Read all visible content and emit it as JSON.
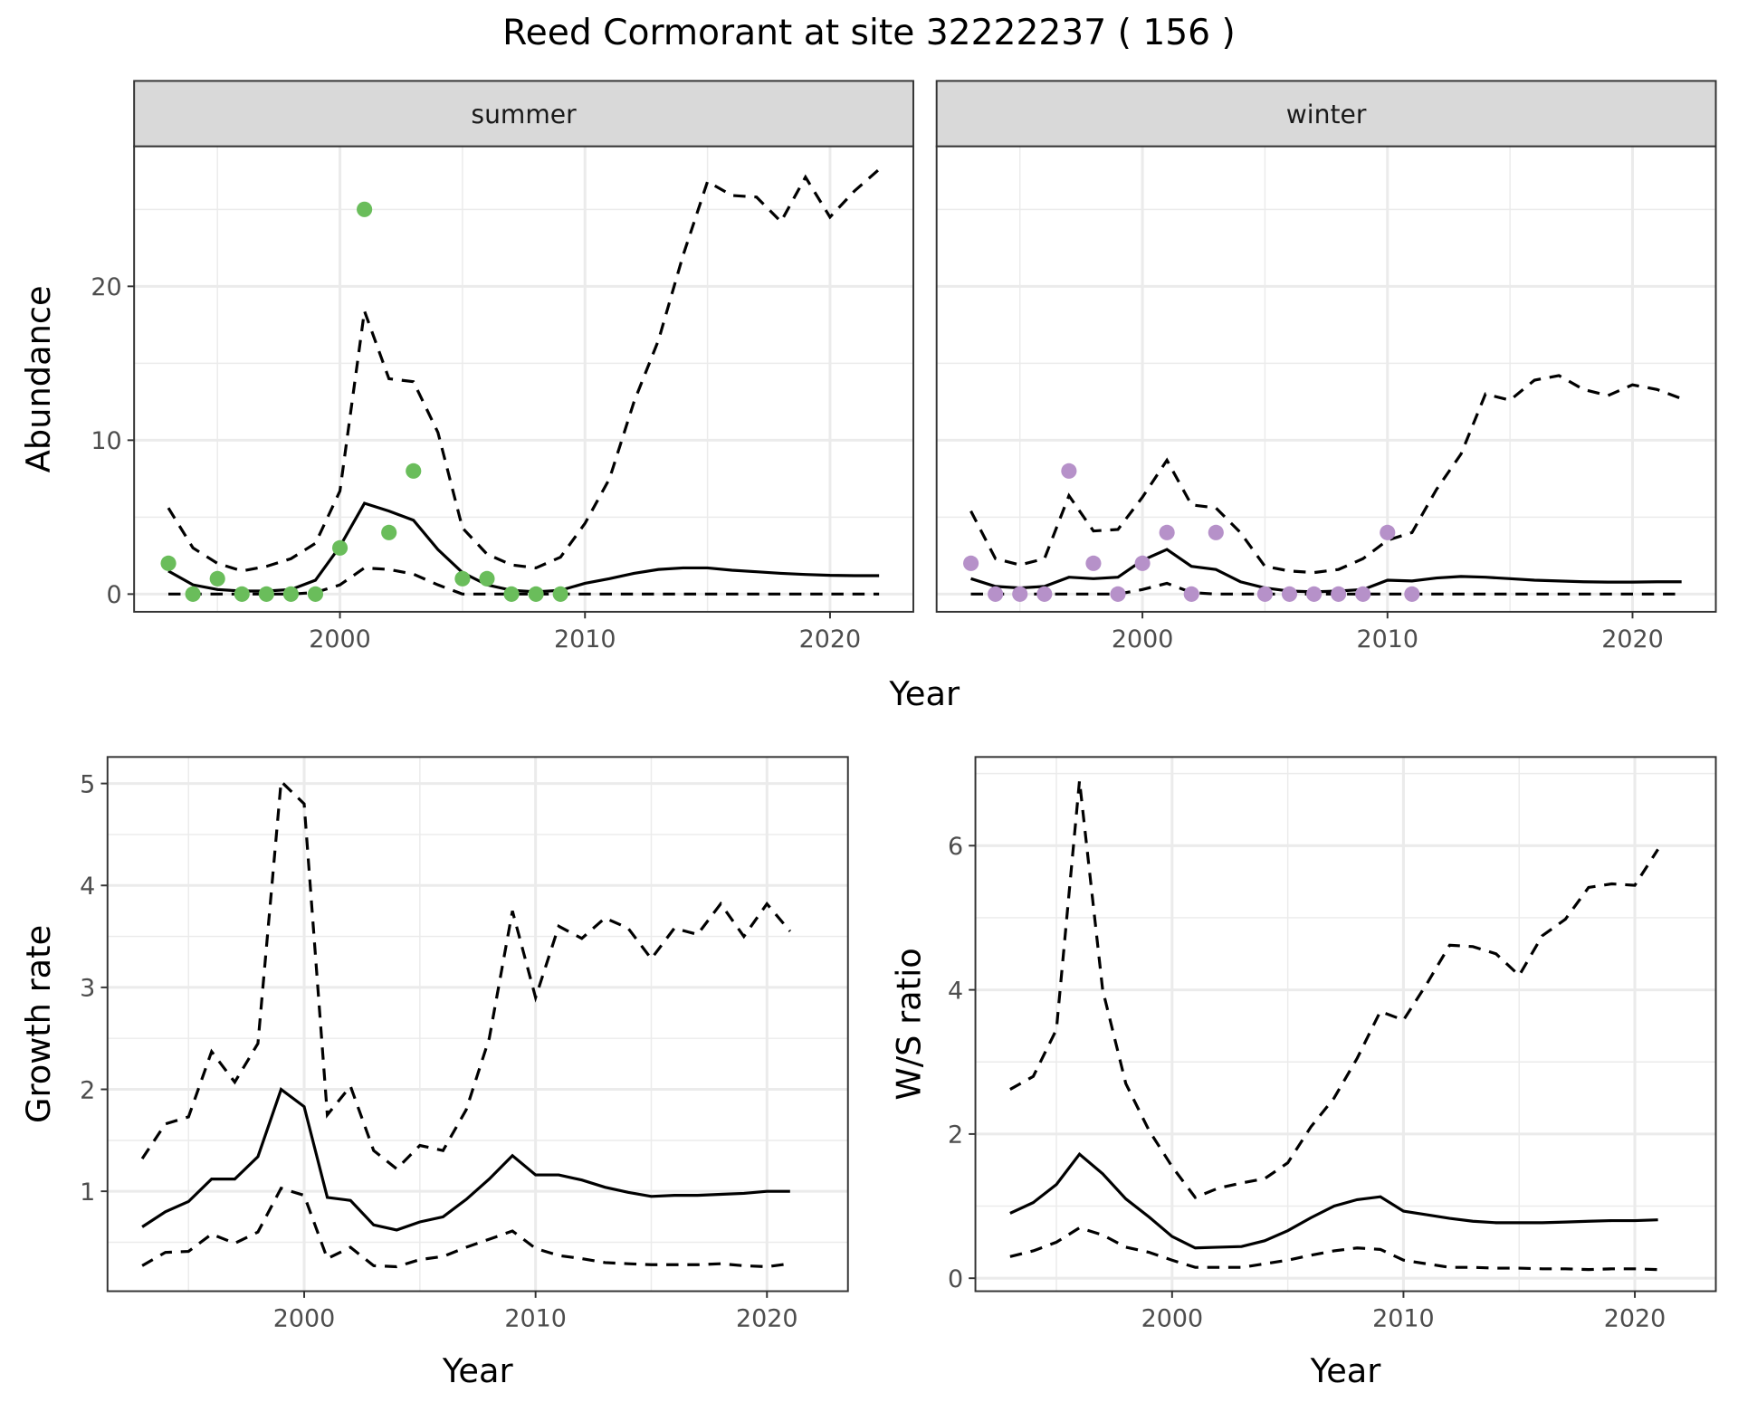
{
  "title": "Reed Cormorant at site 32222237 ( 156 )",
  "colors": {
    "summer": "#6abd5b",
    "winter": "#b691c9",
    "line": "#000000",
    "strip": "#d9d9d9",
    "grid": "#ebebeb"
  },
  "chart_data": [
    {
      "type": "line",
      "facet": "summer",
      "xlabel": "Year",
      "ylabel": "Abundance",
      "xlim": [
        1991.6,
        2023.4
      ],
      "ylim": [
        -1.15,
        29.1
      ],
      "xticks": [
        2000,
        2010,
        2020
      ],
      "yticks": [
        0,
        10,
        20
      ],
      "grid": true,
      "x": [
        1993,
        1994,
        1995,
        1996,
        1997,
        1998,
        1999,
        2000,
        2001,
        2002,
        2003,
        2004,
        2005,
        2006,
        2007,
        2008,
        2009,
        2010,
        2011,
        2012,
        2013,
        2014,
        2015,
        2016,
        2017,
        2018,
        2019,
        2020,
        2021,
        2022
      ],
      "series": [
        {
          "style": "solid",
          "values": [
            1.5,
            0.6,
            0.3,
            0.2,
            0.2,
            0.3,
            0.9,
            3.1,
            5.9,
            5.4,
            4.8,
            2.9,
            1.4,
            0.6,
            0.25,
            0.15,
            0.25,
            0.7,
            1.0,
            1.35,
            1.6,
            1.7,
            1.7,
            1.55,
            1.45,
            1.35,
            1.28,
            1.22,
            1.2,
            1.2
          ]
        },
        {
          "style": "dashed",
          "values": [
            5.6,
            3.0,
            2.0,
            1.5,
            1.8,
            2.3,
            3.3,
            6.7,
            18.4,
            14.0,
            13.8,
            10.5,
            4.3,
            2.6,
            1.9,
            1.7,
            2.4,
            4.6,
            7.5,
            12.5,
            16.5,
            22,
            26.8,
            25.9,
            25.8,
            24.2,
            27.1,
            24.5,
            26.2,
            27.6
          ]
        },
        {
          "style": "dashed",
          "values": [
            0,
            0,
            0,
            0,
            0,
            0,
            0.1,
            0.6,
            1.7,
            1.6,
            1.3,
            0.6,
            0,
            0,
            0,
            0,
            0,
            0,
            0,
            0,
            0,
            0,
            0,
            0,
            0,
            0,
            0,
            0,
            0,
            0
          ]
        }
      ],
      "points": {
        "x": [
          1993,
          1994,
          1995,
          1996,
          1997,
          1998,
          1999,
          2000,
          2001,
          2002,
          2003,
          2005,
          2006,
          2007,
          2008,
          2009
        ],
        "y": [
          2,
          0,
          1,
          0,
          0,
          0,
          0,
          3,
          25,
          4,
          8,
          1,
          1,
          0,
          0,
          0
        ]
      }
    },
    {
      "type": "line",
      "facet": "winter",
      "xlabel": "Year",
      "xlim": [
        1991.6,
        2023.4
      ],
      "ylim": [
        -1.15,
        29.1
      ],
      "xticks": [
        2000,
        2010,
        2020
      ],
      "yticks": [
        0,
        10,
        20
      ],
      "grid": true,
      "x": [
        1993,
        1994,
        1995,
        1996,
        1997,
        1998,
        1999,
        2000,
        2001,
        2002,
        2003,
        2004,
        2005,
        2006,
        2007,
        2008,
        2009,
        2010,
        2011,
        2012,
        2013,
        2014,
        2015,
        2016,
        2017,
        2018,
        2019,
        2020,
        2021,
        2022
      ],
      "series": [
        {
          "style": "solid",
          "values": [
            1.0,
            0.5,
            0.4,
            0.5,
            1.1,
            1.0,
            1.1,
            2.2,
            2.9,
            1.8,
            1.6,
            0.8,
            0.4,
            0.2,
            0.15,
            0.2,
            0.3,
            0.9,
            0.85,
            1.05,
            1.15,
            1.1,
            1.0,
            0.9,
            0.85,
            0.8,
            0.78,
            0.78,
            0.8,
            0.8
          ]
        },
        {
          "style": "dashed",
          "values": [
            5.4,
            2.3,
            1.9,
            2.3,
            6.4,
            4.1,
            4.2,
            6.3,
            8.7,
            5.8,
            5.6,
            4.0,
            1.8,
            1.5,
            1.4,
            1.6,
            2.3,
            3.5,
            4.0,
            6.8,
            9.1,
            13.0,
            12.6,
            13.9,
            14.2,
            13.3,
            12.9,
            13.6,
            13.3,
            12.7
          ]
        },
        {
          "style": "dashed",
          "values": [
            0,
            0,
            0,
            0,
            0,
            0,
            0,
            0.3,
            0.7,
            0.1,
            0,
            0,
            0,
            0,
            0,
            0,
            0,
            0,
            0,
            0,
            0,
            0,
            0,
            0,
            0,
            0,
            0,
            0,
            0,
            0
          ]
        }
      ],
      "points": {
        "x": [
          1993,
          1994,
          1995,
          1996,
          1997,
          1998,
          1999,
          2000,
          2001,
          2002,
          2003,
          2005,
          2006,
          2007,
          2008,
          2009,
          2010,
          2011
        ],
        "y": [
          2,
          0,
          0,
          0,
          8,
          2,
          0,
          2,
          4,
          0,
          4,
          0,
          0,
          0,
          0,
          0,
          4,
          0
        ]
      }
    },
    {
      "type": "line",
      "xlabel": "Year",
      "ylabel": "Growth rate",
      "xlim": [
        1991.5,
        2023.5
      ],
      "ylim": [
        0.02,
        5.26
      ],
      "xticks": [
        2000,
        2010,
        2020
      ],
      "yticks": [
        1,
        2,
        3,
        4,
        5
      ],
      "grid": true,
      "x": [
        1993,
        1994,
        1995,
        1996,
        1997,
        1998,
        1999,
        2000,
        2001,
        2002,
        2003,
        2004,
        2005,
        2006,
        2007,
        2008,
        2009,
        2010,
        2011,
        2012,
        2013,
        2014,
        2015,
        2016,
        2017,
        2018,
        2019,
        2020,
        2021
      ],
      "series": [
        {
          "style": "solid",
          "values": [
            0.65,
            0.8,
            0.9,
            1.12,
            1.12,
            1.34,
            2.0,
            1.83,
            0.94,
            0.91,
            0.67,
            0.62,
            0.7,
            0.75,
            0.92,
            1.12,
            1.35,
            1.16,
            1.16,
            1.11,
            1.04,
            0.99,
            0.95,
            0.96,
            0.96,
            0.97,
            0.98,
            1.0,
            1.0
          ]
        },
        {
          "style": "dashed",
          "values": [
            1.32,
            1.66,
            1.73,
            2.37,
            2.07,
            2.45,
            5.02,
            4.8,
            1.75,
            2.03,
            1.4,
            1.22,
            1.45,
            1.4,
            1.8,
            2.5,
            3.75,
            2.9,
            3.6,
            3.48,
            3.68,
            3.58,
            3.28,
            3.58,
            3.52,
            3.82,
            3.5,
            3.82,
            3.55
          ]
        },
        {
          "style": "dashed",
          "values": [
            0.27,
            0.4,
            0.41,
            0.58,
            0.49,
            0.6,
            1.03,
            0.96,
            0.34,
            0.45,
            0.27,
            0.26,
            0.33,
            0.36,
            0.45,
            0.53,
            0.61,
            0.44,
            0.37,
            0.34,
            0.3,
            0.29,
            0.28,
            0.28,
            0.28,
            0.29,
            0.27,
            0.26,
            0.29
          ]
        }
      ]
    },
    {
      "type": "line",
      "xlabel": "Year",
      "ylabel": "W/S ratio",
      "xlim": [
        1991.5,
        2023.5
      ],
      "ylim": [
        -0.18,
        7.23
      ],
      "xticks": [
        2000,
        2010,
        2020
      ],
      "yticks": [
        0,
        2,
        4,
        6
      ],
      "grid": true,
      "x": [
        1993,
        1994,
        1995,
        1996,
        1997,
        1998,
        1999,
        2000,
        2001,
        2002,
        2003,
        2004,
        2005,
        2006,
        2007,
        2008,
        2009,
        2010,
        2011,
        2012,
        2013,
        2014,
        2015,
        2016,
        2017,
        2018,
        2019,
        2020,
        2021
      ],
      "series": [
        {
          "style": "solid",
          "values": [
            0.9,
            1.05,
            1.3,
            1.72,
            1.45,
            1.1,
            0.85,
            0.58,
            0.42,
            0.43,
            0.44,
            0.52,
            0.66,
            0.84,
            1.0,
            1.09,
            1.13,
            0.93,
            0.88,
            0.83,
            0.79,
            0.77,
            0.77,
            0.77,
            0.78,
            0.79,
            0.8,
            0.8,
            0.81
          ]
        },
        {
          "style": "dashed",
          "values": [
            2.62,
            2.8,
            3.45,
            6.9,
            4.0,
            2.7,
            2.05,
            1.55,
            1.12,
            1.25,
            1.32,
            1.38,
            1.6,
            2.1,
            2.5,
            3.05,
            3.7,
            3.58,
            4.08,
            4.62,
            4.6,
            4.5,
            4.2,
            4.75,
            4.98,
            5.42,
            5.47,
            5.45,
            5.95
          ]
        },
        {
          "style": "dashed",
          "values": [
            0.3,
            0.38,
            0.5,
            0.7,
            0.6,
            0.43,
            0.36,
            0.25,
            0.15,
            0.15,
            0.15,
            0.2,
            0.25,
            0.32,
            0.38,
            0.42,
            0.4,
            0.25,
            0.2,
            0.15,
            0.15,
            0.14,
            0.14,
            0.13,
            0.13,
            0.12,
            0.13,
            0.13,
            0.12
          ]
        }
      ]
    }
  ]
}
